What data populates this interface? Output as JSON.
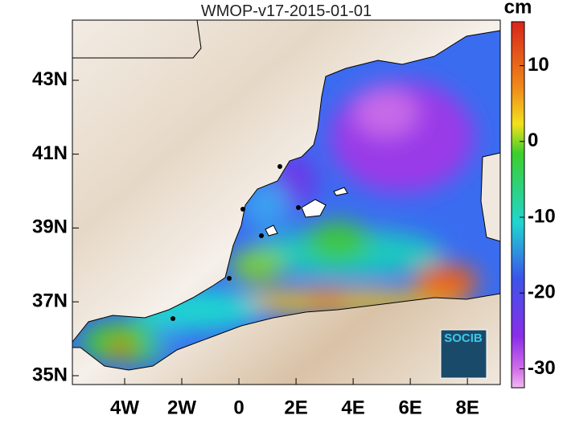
{
  "map": {
    "title": "WMOP-v17-2015-01-01",
    "xlim": [
      -5.83,
      9.15
    ],
    "ylim": [
      34.76,
      44.63
    ],
    "xticks": [
      {
        "value": -4,
        "label": "4W"
      },
      {
        "value": -2,
        "label": "2W"
      },
      0,
      {
        "value": 2,
        "label": "2E"
      },
      {
        "value": 4,
        "label": "4E"
      },
      {
        "value": 6,
        "label": "6E"
      },
      {
        "value": 8,
        "label": "8E"
      }
    ],
    "yticks": [
      {
        "value": 43,
        "label": "43N"
      },
      {
        "value": 41,
        "label": "41N"
      },
      {
        "value": 39,
        "label": "39N"
      },
      {
        "value": 37,
        "label": "37N"
      },
      {
        "value": 35,
        "label": "35N"
      }
    ],
    "colorbar": {
      "unit": "cm",
      "lim": [
        -32.5,
        15.8
      ],
      "ticks": [
        10,
        0,
        -10,
        -20,
        -30
      ]
    },
    "logo": "SOCIB"
  }
}
